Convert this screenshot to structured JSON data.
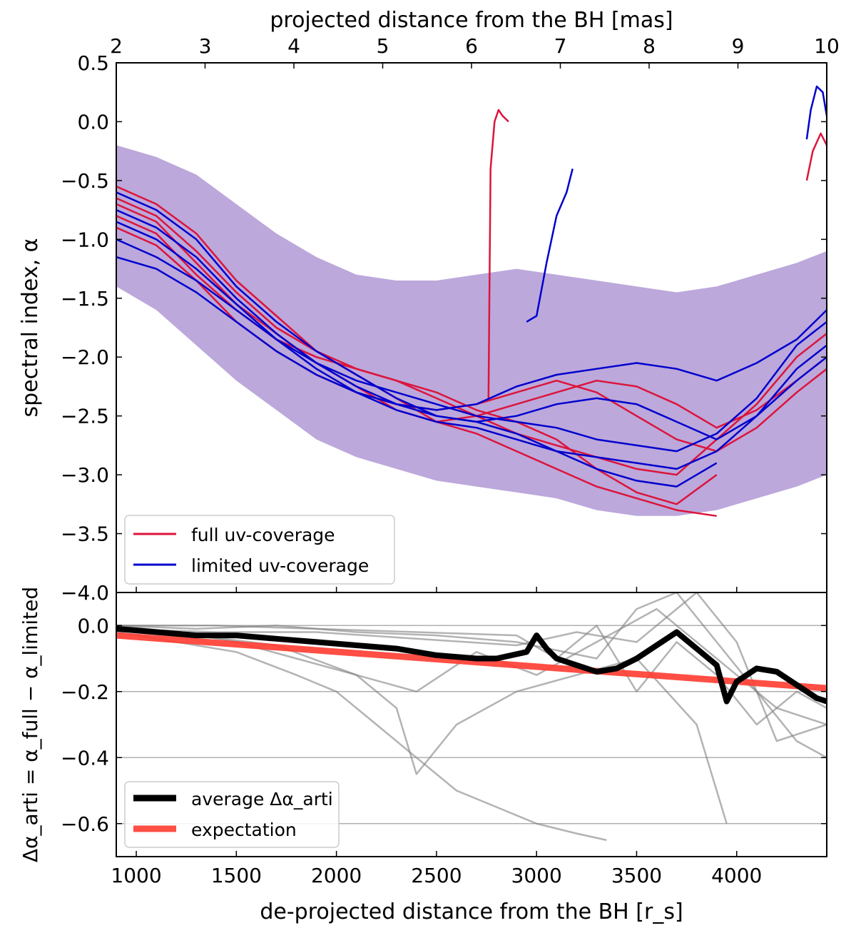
{
  "chart_data": [
    {
      "type": "line",
      "panel": "top",
      "top_axis": {
        "label": "projected distance from the BH [mas]",
        "range": [
          2,
          10
        ],
        "ticks": [
          2,
          3,
          4,
          5,
          6,
          7,
          8,
          9,
          10
        ]
      },
      "ylabel": "spectral index, α",
      "ylim": [
        -4.0,
        0.5
      ],
      "yticks": [
        0.5,
        0.0,
        -0.5,
        -1.0,
        -1.5,
        -2.0,
        -2.5,
        -3.0,
        -3.5,
        -4.0
      ],
      "ytick_labels": [
        "0.5",
        "0.0",
        "−0.5",
        "−1.0",
        "−1.5",
        "−2.0",
        "−2.5",
        "−3.0",
        "−3.5",
        "−4.0"
      ],
      "xlim": [
        900,
        4450
      ],
      "legend": {
        "placement": "lower-left",
        "entries": [
          {
            "label": "full uv-coverage",
            "color": "#dc143c"
          },
          {
            "label": "limited uv-coverage",
            "color": "#0000cd"
          }
        ]
      },
      "band": {
        "x": [
          900,
          1100,
          1300,
          1500,
          1700,
          1900,
          2100,
          2300,
          2500,
          2700,
          2900,
          3100,
          3300,
          3500,
          3700,
          3900,
          4100,
          4300,
          4450
        ],
        "upper": [
          -0.2,
          -0.3,
          -0.45,
          -0.7,
          -0.95,
          -1.15,
          -1.3,
          -1.35,
          -1.35,
          -1.3,
          -1.25,
          -1.3,
          -1.35,
          -1.4,
          -1.45,
          -1.4,
          -1.3,
          -1.2,
          -1.1
        ],
        "lower": [
          -1.4,
          -1.6,
          -1.9,
          -2.2,
          -2.45,
          -2.7,
          -2.85,
          -2.95,
          -3.05,
          -3.1,
          -3.15,
          -3.2,
          -3.3,
          -3.35,
          -3.35,
          -3.3,
          -3.2,
          -3.1,
          -3.0
        ]
      },
      "series": [
        {
          "color": "#dc143c",
          "x": [
            900,
            1100,
            1300,
            1500,
            1700,
            1900,
            2100,
            2300,
            2500,
            2700,
            2900,
            3100,
            3300,
            3500,
            3700,
            3900
          ],
          "y": [
            -0.55,
            -0.7,
            -0.95,
            -1.35,
            -1.65,
            -1.95,
            -2.15,
            -2.35,
            -2.55,
            -2.65,
            -2.8,
            -2.95,
            -3.1,
            -3.2,
            -3.3,
            -3.35
          ]
        },
        {
          "color": "#dc143c",
          "x": [
            900,
            1100,
            1300,
            1500,
            1700,
            1900,
            2100,
            2300,
            2500,
            2700,
            2900,
            3100,
            3300,
            3500,
            3700,
            3900,
            4100,
            4300,
            4450
          ],
          "y": [
            -0.65,
            -0.8,
            -1.1,
            -1.45,
            -1.75,
            -1.95,
            -2.1,
            -2.2,
            -2.35,
            -2.5,
            -2.65,
            -2.75,
            -2.85,
            -2.95,
            -3.0,
            -2.7,
            -2.4,
            -2.0,
            -1.8
          ]
        },
        {
          "color": "#dc143c",
          "x": [
            900,
            1100,
            1300,
            1500,
            1700,
            1900,
            2100,
            2300,
            2500,
            2700,
            2900,
            3100,
            3300,
            3500,
            3700,
            3900,
            4100,
            4300,
            4450
          ],
          "y": [
            -0.7,
            -0.85,
            -1.2,
            -1.55,
            -1.8,
            -2.05,
            -2.25,
            -2.45,
            -2.55,
            -2.5,
            -2.4,
            -2.3,
            -2.2,
            -2.25,
            -2.4,
            -2.6,
            -2.45,
            -2.2,
            -2.0
          ]
        },
        {
          "color": "#dc143c",
          "x": [
            900,
            1100,
            1300,
            1500,
            1700,
            1900,
            2100,
            2300,
            2500,
            2700,
            2900,
            3100,
            3300,
            3500,
            3700,
            3900
          ],
          "y": [
            -0.8,
            -0.95,
            -1.3,
            -1.6,
            -1.85,
            -2.0,
            -2.1,
            -2.2,
            -2.3,
            -2.45,
            -2.55,
            -2.7,
            -2.95,
            -3.15,
            -3.25,
            -3.0
          ]
        },
        {
          "color": "#dc143c",
          "x": [
            900,
            1100,
            1300,
            1500,
            1700,
            1900,
            2100,
            2300,
            2500,
            2700,
            2900,
            3100,
            3300,
            3500,
            3700,
            3900,
            4100,
            4300,
            4450
          ],
          "y": [
            -0.9,
            -1.05,
            -1.35,
            -1.7,
            -1.95,
            -2.15,
            -2.3,
            -2.4,
            -2.45,
            -2.4,
            -2.3,
            -2.2,
            -2.3,
            -2.5,
            -2.7,
            -2.8,
            -2.6,
            -2.3,
            -2.1
          ]
        },
        {
          "color": "#dc143c",
          "x": [
            2760,
            2770,
            2790,
            2810,
            2830,
            2860
          ],
          "y": [
            -2.35,
            -0.4,
            0.0,
            0.1,
            0.05,
            0.0
          ]
        },
        {
          "color": "#dc143c",
          "x": [
            4350,
            4380,
            4420,
            4450
          ],
          "y": [
            -0.5,
            -0.25,
            -0.1,
            -0.2
          ]
        },
        {
          "color": "#0000cd",
          "x": [
            900,
            1100,
            1300,
            1500,
            1700,
            1900,
            2100,
            2300,
            2500,
            2700,
            2900,
            3100,
            3300,
            3500,
            3700,
            3900,
            4100,
            4300,
            4450
          ],
          "y": [
            -0.6,
            -0.75,
            -1.0,
            -1.4,
            -1.7,
            -1.95,
            -2.15,
            -2.35,
            -2.5,
            -2.55,
            -2.5,
            -2.4,
            -2.35,
            -2.4,
            -2.55,
            -2.7,
            -2.5,
            -2.2,
            -2.0
          ]
        },
        {
          "color": "#0000cd",
          "x": [
            900,
            1100,
            1300,
            1500,
            1700,
            1900,
            2100,
            2300,
            2500,
            2700,
            2900,
            3100,
            3300,
            3500,
            3700,
            3900,
            4100,
            4300,
            4450
          ],
          "y": [
            -0.75,
            -0.9,
            -1.15,
            -1.5,
            -1.8,
            -2.05,
            -2.25,
            -2.4,
            -2.45,
            -2.4,
            -2.25,
            -2.15,
            -2.1,
            -2.05,
            -2.1,
            -2.2,
            -2.05,
            -1.85,
            -1.6
          ]
        },
        {
          "color": "#0000cd",
          "x": [
            900,
            1100,
            1300,
            1500,
            1700,
            1900,
            2100,
            2300,
            2500,
            2700,
            2900,
            3100,
            3300,
            3500,
            3700,
            3900,
            4100,
            4300,
            4450
          ],
          "y": [
            -0.85,
            -1.0,
            -1.25,
            -1.55,
            -1.85,
            -2.1,
            -2.3,
            -2.45,
            -2.55,
            -2.6,
            -2.7,
            -2.8,
            -2.85,
            -2.9,
            -2.95,
            -2.8,
            -2.5,
            -2.1,
            -1.9
          ]
        },
        {
          "color": "#0000cd",
          "x": [
            900,
            1100,
            1300,
            1500,
            1700,
            1900,
            2100,
            2300,
            2500,
            2700,
            2900,
            3100,
            3300,
            3500,
            3700,
            3900,
            4100,
            4300,
            4450
          ],
          "y": [
            -1.0,
            -1.15,
            -1.35,
            -1.6,
            -1.85,
            -2.05,
            -2.2,
            -2.3,
            -2.4,
            -2.5,
            -2.55,
            -2.6,
            -2.7,
            -2.75,
            -2.8,
            -2.65,
            -2.35,
            -1.9,
            -1.7
          ]
        },
        {
          "color": "#0000cd",
          "x": [
            900,
            1100,
            1300,
            1500,
            1700,
            1900,
            2100,
            2300,
            2500,
            2700,
            2900,
            3100,
            3300,
            3500,
            3700,
            3900
          ],
          "y": [
            -1.15,
            -1.25,
            -1.45,
            -1.7,
            -1.95,
            -2.15,
            -2.3,
            -2.4,
            -2.5,
            -2.55,
            -2.65,
            -2.8,
            -2.95,
            -3.05,
            -3.1,
            -2.9
          ]
        },
        {
          "color": "#0000cd",
          "x": [
            2950,
            3000,
            3050,
            3100,
            3150,
            3180
          ],
          "y": [
            -1.7,
            -1.65,
            -1.2,
            -0.8,
            -0.6,
            -0.4
          ]
        },
        {
          "color": "#0000cd",
          "x": [
            4350,
            4370,
            4400,
            4430,
            4450
          ],
          "y": [
            -0.15,
            0.1,
            0.3,
            0.25,
            0.05
          ]
        }
      ]
    },
    {
      "type": "line",
      "panel": "bottom",
      "xlabel": "de-projected distance from the BH [r_s]",
      "ylabel": "Δα_arti = α_full − α_limited",
      "xlim": [
        900,
        4450
      ],
      "xticks": [
        1000,
        1500,
        2000,
        2500,
        3000,
        3500,
        4000
      ],
      "ylim": [
        -0.7,
        0.1
      ],
      "yticks": [
        0.0,
        -0.2,
        -0.4,
        -0.6
      ],
      "ytick_labels": [
        "0.0",
        "−0.2",
        "−0.4",
        "−0.6"
      ],
      "grid": "horizontal",
      "legend": {
        "placement": "lower-left",
        "entries": [
          {
            "label": "average Δα_arti",
            "color": "#000000"
          },
          {
            "label": "expectation",
            "color": "#ff3b30"
          }
        ]
      },
      "average": {
        "x": [
          900,
          1100,
          1300,
          1500,
          1700,
          1900,
          2100,
          2300,
          2500,
          2700,
          2800,
          2950,
          3000,
          3050,
          3100,
          3200,
          3300,
          3400,
          3500,
          3600,
          3700,
          3800,
          3900,
          3950,
          4000,
          4100,
          4200,
          4300,
          4400,
          4450
        ],
        "y": [
          -0.01,
          -0.02,
          -0.03,
          -0.03,
          -0.04,
          -0.05,
          -0.06,
          -0.07,
          -0.09,
          -0.1,
          -0.1,
          -0.08,
          -0.03,
          -0.07,
          -0.1,
          -0.12,
          -0.14,
          -0.13,
          -0.1,
          -0.06,
          -0.02,
          -0.07,
          -0.12,
          -0.23,
          -0.17,
          -0.13,
          -0.14,
          -0.18,
          -0.22,
          -0.23
        ]
      },
      "expectation": {
        "x": [
          900,
          4450
        ],
        "y": [
          -0.03,
          -0.19
        ]
      },
      "individual": [
        {
          "x": [
            900,
            1200,
            1500,
            1800,
            2100,
            2400,
            2700,
            3000,
            3300,
            3600,
            3900,
            4200,
            4450
          ],
          "y": [
            0.0,
            -0.02,
            -0.05,
            -0.1,
            -0.15,
            -0.2,
            -0.08,
            -0.15,
            -0.05,
            0.05,
            -0.1,
            -0.25,
            -0.3
          ]
        },
        {
          "x": [
            900,
            1200,
            1500,
            1800,
            2000,
            2200,
            2400,
            2600,
            2800,
            3000,
            3200,
            3350
          ],
          "y": [
            -0.02,
            -0.05,
            -0.08,
            -0.15,
            -0.2,
            -0.3,
            -0.4,
            -0.5,
            -0.55,
            -0.6,
            -0.63,
            -0.65
          ]
        },
        {
          "x": [
            900,
            1300,
            1700,
            2100,
            2300,
            2400,
            2600,
            2900,
            3200,
            3500,
            3800,
            3950
          ],
          "y": [
            -0.01,
            -0.03,
            -0.06,
            -0.15,
            -0.25,
            -0.45,
            -0.3,
            -0.2,
            -0.15,
            -0.1,
            -0.3,
            -0.6
          ]
        },
        {
          "x": [
            900,
            1300,
            1700,
            2100,
            2500,
            2900,
            3300,
            3500,
            3700,
            3900,
            4100,
            4300,
            4450
          ],
          "y": [
            0.0,
            -0.01,
            0.0,
            -0.02,
            -0.03,
            -0.05,
            -0.1,
            0.05,
            0.1,
            -0.05,
            -0.2,
            -0.35,
            -0.4
          ]
        },
        {
          "x": [
            900,
            1400,
            1900,
            2400,
            2900,
            3100,
            3300,
            3500,
            3700,
            3900,
            4100,
            4300,
            4450
          ],
          "y": [
            0.0,
            0.0,
            -0.01,
            -0.02,
            -0.03,
            -0.1,
            0.0,
            -0.2,
            -0.05,
            -0.15,
            -0.3,
            -0.2,
            -0.25
          ]
        },
        {
          "x": [
            900,
            1400,
            1900,
            2400,
            2900,
            3200,
            3500,
            3800,
            4000,
            4200,
            4450
          ],
          "y": [
            -0.01,
            -0.02,
            -0.02,
            -0.04,
            -0.06,
            -0.02,
            -0.05,
            0.1,
            -0.05,
            -0.35,
            -0.3
          ]
        }
      ]
    }
  ]
}
